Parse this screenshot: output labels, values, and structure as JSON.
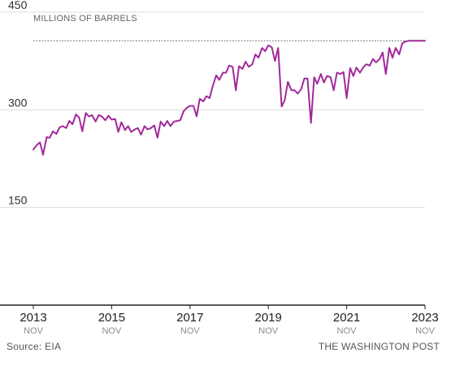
{
  "chart_data": {
    "type": "line",
    "unit_label": "MILLIONS OF BARRELS",
    "ylim": [
      0,
      450
    ],
    "y_ticks": [
      150,
      300,
      450
    ],
    "x_range": [
      2013.83,
      2023.83
    ],
    "x_ticks": [
      {
        "year": "2013",
        "month": "NOV",
        "x": 2013.83
      },
      {
        "year": "2015",
        "month": "NOV",
        "x": 2015.83
      },
      {
        "year": "2017",
        "month": "NOV",
        "x": 2017.83
      },
      {
        "year": "2019",
        "month": "NOV",
        "x": 2019.83
      },
      {
        "year": "2021",
        "month": "NOV",
        "x": 2021.83
      },
      {
        "year": "2023",
        "month": "NOV",
        "x": 2023.83
      }
    ],
    "reference_value": 406,
    "grid": true,
    "line_color": "#a2289a",
    "series": [
      {
        "x": [
          2013.83,
          2013.92,
          2014.0,
          2014.08,
          2014.17,
          2014.25,
          2014.33,
          2014.42,
          2014.5,
          2014.58,
          2014.67,
          2014.75,
          2014.83,
          2014.92,
          2015.0,
          2015.08,
          2015.17,
          2015.25,
          2015.33,
          2015.42,
          2015.5,
          2015.58,
          2015.67,
          2015.75,
          2015.83,
          2015.92,
          2016.0,
          2016.08,
          2016.17,
          2016.25,
          2016.33,
          2016.42,
          2016.5,
          2016.58,
          2016.67,
          2016.75,
          2016.83,
          2016.92,
          2017.0,
          2017.08,
          2017.17,
          2017.25,
          2017.33,
          2017.42,
          2017.5,
          2017.58,
          2017.67,
          2017.75,
          2017.83,
          2017.92,
          2018.0,
          2018.08,
          2018.17,
          2018.25,
          2018.33,
          2018.42,
          2018.5,
          2018.58,
          2018.67,
          2018.75,
          2018.83,
          2018.92,
          2019.0,
          2019.08,
          2019.17,
          2019.25,
          2019.33,
          2019.42,
          2019.5,
          2019.58,
          2019.67,
          2019.75,
          2019.83,
          2019.92,
          2020.0,
          2020.08,
          2020.17,
          2020.25,
          2020.33,
          2020.42,
          2020.5,
          2020.58,
          2020.67,
          2020.75,
          2020.83,
          2020.92,
          2021.0,
          2021.08,
          2021.17,
          2021.25,
          2021.33,
          2021.42,
          2021.5,
          2021.58,
          2021.67,
          2021.75,
          2021.83,
          2021.92,
          2022.0,
          2022.08,
          2022.17,
          2022.25,
          2022.33,
          2022.42,
          2022.5,
          2022.58,
          2022.67,
          2022.75,
          2022.83,
          2022.92,
          2023.0,
          2023.08,
          2023.17,
          2023.25,
          2023.33,
          2023.42,
          2023.5,
          2023.58,
          2023.67,
          2023.75,
          2023.83
        ],
        "values": [
          239,
          246,
          250,
          231,
          258,
          257,
          267,
          263,
          273,
          275,
          272,
          283,
          278,
          293,
          288,
          267,
          295,
          290,
          292,
          282,
          292,
          290,
          284,
          291,
          285,
          286,
          266,
          281,
          269,
          275,
          266,
          270,
          272,
          262,
          275,
          270,
          272,
          276,
          257,
          282,
          275,
          283,
          275,
          282,
          283,
          284,
          298,
          303,
          306,
          306,
          290,
          317,
          313,
          321,
          318,
          338,
          353,
          346,
          357,
          357,
          368,
          366,
          330,
          367,
          363,
          374,
          366,
          370,
          385,
          380,
          395,
          390,
          399,
          396,
          375,
          395,
          305,
          315,
          343,
          330,
          330,
          325,
          332,
          348,
          348,
          280,
          350,
          340,
          355,
          342,
          352,
          350,
          330,
          357,
          355,
          358,
          318,
          364,
          352,
          365,
          357,
          365,
          370,
          368,
          378,
          373,
          378,
          388,
          355,
          395,
          380,
          395,
          385,
          402,
          405,
          406,
          406,
          406,
          406,
          406,
          406
        ]
      }
    ]
  },
  "footer": {
    "source": "Source: EIA",
    "credit": "THE WASHINGTON POST"
  }
}
